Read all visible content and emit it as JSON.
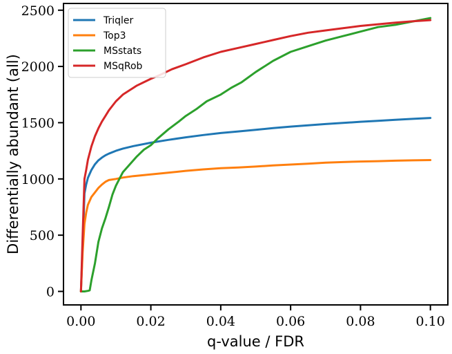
{
  "chart_data": {
    "type": "line",
    "title": "",
    "xlabel": "q-value / FDR",
    "ylabel": "Differentially abundant (all)",
    "xlim": [
      -0.005,
      0.105
    ],
    "ylim": [
      -120,
      2560
    ],
    "xticks": [
      0.0,
      0.02,
      0.04,
      0.06,
      0.08,
      0.1
    ],
    "xtick_labels": [
      "0.00",
      "0.02",
      "0.04",
      "0.06",
      "0.08",
      "0.10"
    ],
    "yticks": [
      0,
      500,
      1000,
      1500,
      2000,
      2500
    ],
    "ytick_labels": [
      "0",
      "500",
      "1000",
      "1500",
      "2000",
      "2500"
    ],
    "grid": false,
    "legend": "top-left",
    "series": [
      {
        "name": "Triqler",
        "color": "#1f77b4",
        "points": [
          [
            0,
            0
          ],
          [
            0.0005,
            400
          ],
          [
            0.001,
            870
          ],
          [
            0.0015,
            950
          ],
          [
            0.002,
            1010
          ],
          [
            0.003,
            1080
          ],
          [
            0.004,
            1130
          ],
          [
            0.005,
            1165
          ],
          [
            0.006,
            1190
          ],
          [
            0.007,
            1210
          ],
          [
            0.008,
            1225
          ],
          [
            0.01,
            1250
          ],
          [
            0.012,
            1270
          ],
          [
            0.015,
            1292
          ],
          [
            0.02,
            1322
          ],
          [
            0.025,
            1347
          ],
          [
            0.03,
            1370
          ],
          [
            0.035,
            1390
          ],
          [
            0.04,
            1408
          ],
          [
            0.045,
            1422
          ],
          [
            0.05,
            1437
          ],
          [
            0.055,
            1452
          ],
          [
            0.06,
            1465
          ],
          [
            0.065,
            1477
          ],
          [
            0.07,
            1488
          ],
          [
            0.075,
            1498
          ],
          [
            0.08,
            1508
          ],
          [
            0.085,
            1517
          ],
          [
            0.09,
            1526
          ],
          [
            0.095,
            1534
          ],
          [
            0.1,
            1542
          ]
        ]
      },
      {
        "name": "Top3",
        "color": "#ff7f0e",
        "points": [
          [
            0,
            0
          ],
          [
            0.0005,
            350
          ],
          [
            0.001,
            600
          ],
          [
            0.0015,
            700
          ],
          [
            0.002,
            770
          ],
          [
            0.003,
            840
          ],
          [
            0.004,
            880
          ],
          [
            0.005,
            920
          ],
          [
            0.006,
            950
          ],
          [
            0.007,
            975
          ],
          [
            0.008,
            990
          ],
          [
            0.01,
            1000
          ],
          [
            0.012,
            1012
          ],
          [
            0.015,
            1025
          ],
          [
            0.02,
            1040
          ],
          [
            0.025,
            1055
          ],
          [
            0.03,
            1072
          ],
          [
            0.035,
            1085
          ],
          [
            0.04,
            1095
          ],
          [
            0.045,
            1102
          ],
          [
            0.05,
            1110
          ],
          [
            0.055,
            1120
          ],
          [
            0.06,
            1128
          ],
          [
            0.065,
            1135
          ],
          [
            0.07,
            1145
          ],
          [
            0.075,
            1150
          ],
          [
            0.08,
            1155
          ],
          [
            0.085,
            1158
          ],
          [
            0.09,
            1162
          ],
          [
            0.095,
            1165
          ],
          [
            0.1,
            1168
          ]
        ]
      },
      {
        "name": "MSstats",
        "color": "#2ca02c",
        "points": [
          [
            0,
            0
          ],
          [
            0.001,
            0
          ],
          [
            0.002,
            5
          ],
          [
            0.0025,
            10
          ],
          [
            0.003,
            100
          ],
          [
            0.004,
            250
          ],
          [
            0.005,
            440
          ],
          [
            0.006,
            560
          ],
          [
            0.007,
            650
          ],
          [
            0.008,
            750
          ],
          [
            0.009,
            860
          ],
          [
            0.01,
            940
          ],
          [
            0.011,
            1000
          ],
          [
            0.012,
            1060
          ],
          [
            0.014,
            1130
          ],
          [
            0.016,
            1200
          ],
          [
            0.018,
            1260
          ],
          [
            0.02,
            1300
          ],
          [
            0.022,
            1360
          ],
          [
            0.025,
            1440
          ],
          [
            0.028,
            1510
          ],
          [
            0.03,
            1560
          ],
          [
            0.033,
            1620
          ],
          [
            0.036,
            1690
          ],
          [
            0.04,
            1750
          ],
          [
            0.043,
            1810
          ],
          [
            0.046,
            1860
          ],
          [
            0.05,
            1950
          ],
          [
            0.055,
            2050
          ],
          [
            0.06,
            2130
          ],
          [
            0.065,
            2180
          ],
          [
            0.07,
            2230
          ],
          [
            0.075,
            2270
          ],
          [
            0.08,
            2310
          ],
          [
            0.085,
            2350
          ],
          [
            0.09,
            2370
          ],
          [
            0.095,
            2400
          ],
          [
            0.1,
            2430
          ]
        ]
      },
      {
        "name": "MSqRob",
        "color": "#d62728",
        "points": [
          [
            0,
            0
          ],
          [
            0.0005,
            500
          ],
          [
            0.001,
            1000
          ],
          [
            0.0015,
            1080
          ],
          [
            0.002,
            1170
          ],
          [
            0.003,
            1290
          ],
          [
            0.004,
            1380
          ],
          [
            0.005,
            1450
          ],
          [
            0.006,
            1510
          ],
          [
            0.007,
            1560
          ],
          [
            0.008,
            1610
          ],
          [
            0.009,
            1650
          ],
          [
            0.01,
            1690
          ],
          [
            0.012,
            1750
          ],
          [
            0.014,
            1790
          ],
          [
            0.016,
            1830
          ],
          [
            0.018,
            1860
          ],
          [
            0.02,
            1890
          ],
          [
            0.023,
            1930
          ],
          [
            0.026,
            1975
          ],
          [
            0.03,
            2020
          ],
          [
            0.035,
            2080
          ],
          [
            0.04,
            2130
          ],
          [
            0.045,
            2165
          ],
          [
            0.05,
            2200
          ],
          [
            0.055,
            2235
          ],
          [
            0.06,
            2270
          ],
          [
            0.065,
            2300
          ],
          [
            0.07,
            2320
          ],
          [
            0.075,
            2340
          ],
          [
            0.08,
            2360
          ],
          [
            0.085,
            2375
          ],
          [
            0.09,
            2390
          ],
          [
            0.095,
            2402
          ],
          [
            0.1,
            2412
          ]
        ]
      }
    ]
  }
}
